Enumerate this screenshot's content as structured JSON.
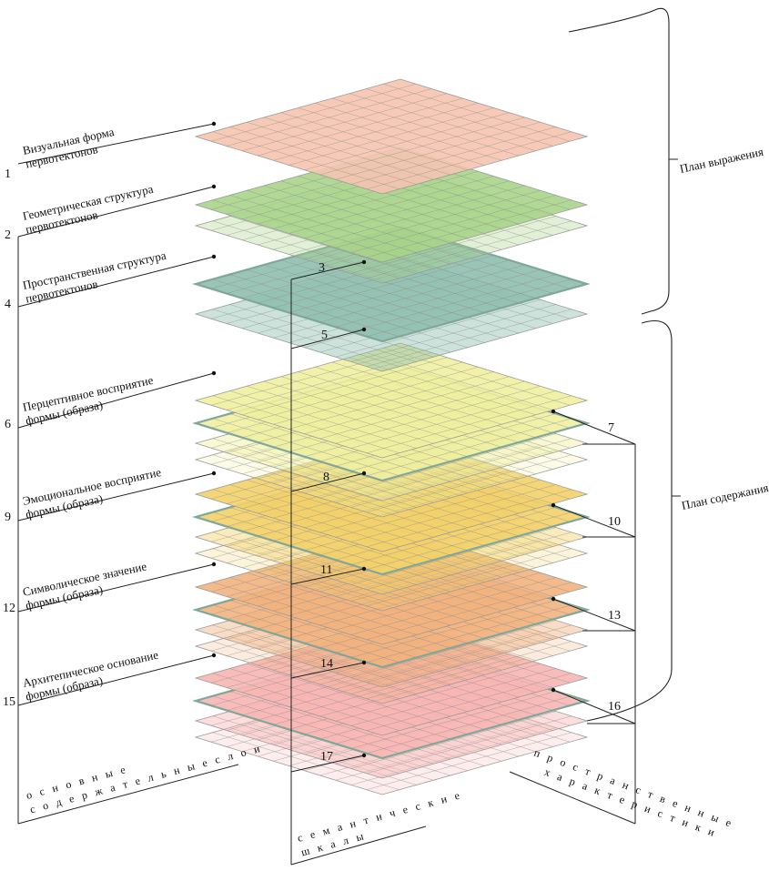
{
  "diagram": {
    "layer_labels": [
      {
        "line1": "Визуальная форма",
        "line2": "первотектонов",
        "number": "1"
      },
      {
        "line1": "Геометрическая структура",
        "line2": "первотектонов",
        "number": "2"
      },
      {
        "line1": "Пространственная структура",
        "line2": "первотектонов",
        "number": "4"
      },
      {
        "line1": "Перцептивное восприятие",
        "line2": "формы (образа)",
        "number": "6"
      },
      {
        "line1": "Эмоциональное восприятие",
        "line2": "формы (образа)",
        "number": "9"
      },
      {
        "line1": "Символическое значение",
        "line2": "формы (образа)",
        "number": "12"
      },
      {
        "line1": "Архитепическое основание",
        "line2": "формы (образа)",
        "number": "15"
      }
    ],
    "scale_numbers": [
      "3",
      "5",
      "8",
      "11",
      "14",
      "17"
    ],
    "right_numbers": [
      "7",
      "10",
      "13",
      "16"
    ],
    "plan_expression": "План выражения",
    "plan_content": "План содержания",
    "axis_main_line1": "о с н о в н ы е",
    "axis_main_line2": "с о д е р ж а т е л ь н ы е   с л о и",
    "axis_semantic_line1": "с е м а н т и ч е с к и е",
    "axis_semantic_line2": "ш к а л ы",
    "axis_spatial_line1": "п р о с т р а н с т в е н н ы е",
    "axis_spatial_line2": "х а р а к т е р и с т и к и",
    "colors": {
      "visual": "#f6c4b0",
      "geometric": "#a9d48a",
      "spatial": "#8fbfae",
      "perceptual": "#f0f0a0",
      "emotional": "#f3d26a",
      "symbolic": "#f2b27e",
      "archetypal": "#f7b6b4",
      "frame": "#7fa79a"
    }
  }
}
